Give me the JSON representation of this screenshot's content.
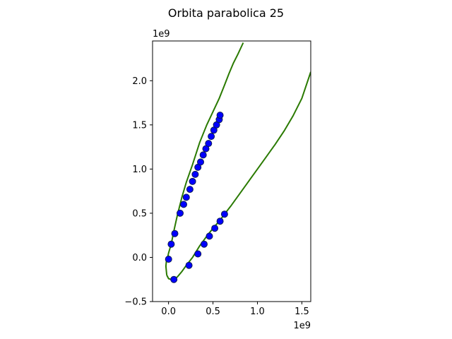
{
  "chart_data": {
    "type": "scatter",
    "title": "Orbita parabolica 25",
    "xlabel": "",
    "ylabel": "",
    "x_offset_label": "1e9",
    "y_offset_label": "1e9",
    "xlim": [
      -0.18,
      1.6
    ],
    "ylim": [
      -0.5,
      2.45
    ],
    "x_ticks": [
      0.0,
      0.5,
      1.0,
      1.5
    ],
    "x_tick_labels": [
      "0.0",
      "0.5",
      "1.0",
      "1.5"
    ],
    "y_ticks": [
      -0.5,
      0.0,
      0.5,
      1.0,
      1.5,
      2.0
    ],
    "y_tick_labels": [
      "−0.5",
      "0.0",
      "0.5",
      "1.0",
      "1.5",
      "2.0"
    ],
    "grid": false,
    "colors": {
      "curve": "#2a7a00",
      "points": "#0000ff",
      "point_edge": "#0a1a55",
      "axes": "#000000"
    },
    "series": [
      {
        "kind": "line",
        "x": [
          -0.02,
          -0.03,
          -0.025,
          -0.01,
          0.0,
          0.03,
          0.06,
          0.1,
          0.15,
          0.2,
          0.27,
          0.35,
          0.43,
          0.5,
          0.57,
          0.63,
          0.68,
          0.73,
          0.78,
          0.84
        ],
        "y": [
          -0.2,
          -0.1,
          -0.05,
          0.0,
          0.05,
          0.15,
          0.3,
          0.48,
          0.68,
          0.85,
          1.05,
          1.3,
          1.5,
          1.65,
          1.8,
          1.95,
          2.08,
          2.2,
          2.3,
          2.43
        ]
      },
      {
        "kind": "line",
        "x": [
          -0.02,
          0.0,
          0.03,
          0.06,
          0.1,
          0.15,
          0.2,
          0.27,
          0.35,
          0.43,
          0.5,
          0.57,
          0.63,
          0.7,
          0.8,
          0.9,
          1.0,
          1.1,
          1.2,
          1.3,
          1.4,
          1.5,
          1.6
        ],
        "y": [
          -0.2,
          -0.24,
          -0.25,
          -0.25,
          -0.22,
          -0.16,
          -0.09,
          0.0,
          0.13,
          0.24,
          0.33,
          0.41,
          0.49,
          0.58,
          0.72,
          0.86,
          1.0,
          1.14,
          1.28,
          1.43,
          1.6,
          1.8,
          2.1
        ]
      },
      {
        "kind": "points",
        "x": [
          0.0,
          0.03,
          0.07,
          0.13,
          0.17,
          0.2,
          0.24,
          0.27,
          0.3,
          0.33,
          0.36,
          0.39,
          0.42,
          0.45,
          0.48,
          0.51,
          0.54,
          0.57,
          0.58,
          0.06,
          0.23,
          0.33,
          0.4,
          0.46,
          0.52,
          0.58,
          0.63
        ],
        "y": [
          -0.02,
          0.15,
          0.27,
          0.5,
          0.6,
          0.68,
          0.77,
          0.86,
          0.94,
          1.02,
          1.08,
          1.16,
          1.23,
          1.29,
          1.37,
          1.44,
          1.5,
          1.56,
          1.61,
          -0.25,
          -0.09,
          0.04,
          0.15,
          0.24,
          0.33,
          0.41,
          0.49
        ]
      }
    ]
  }
}
